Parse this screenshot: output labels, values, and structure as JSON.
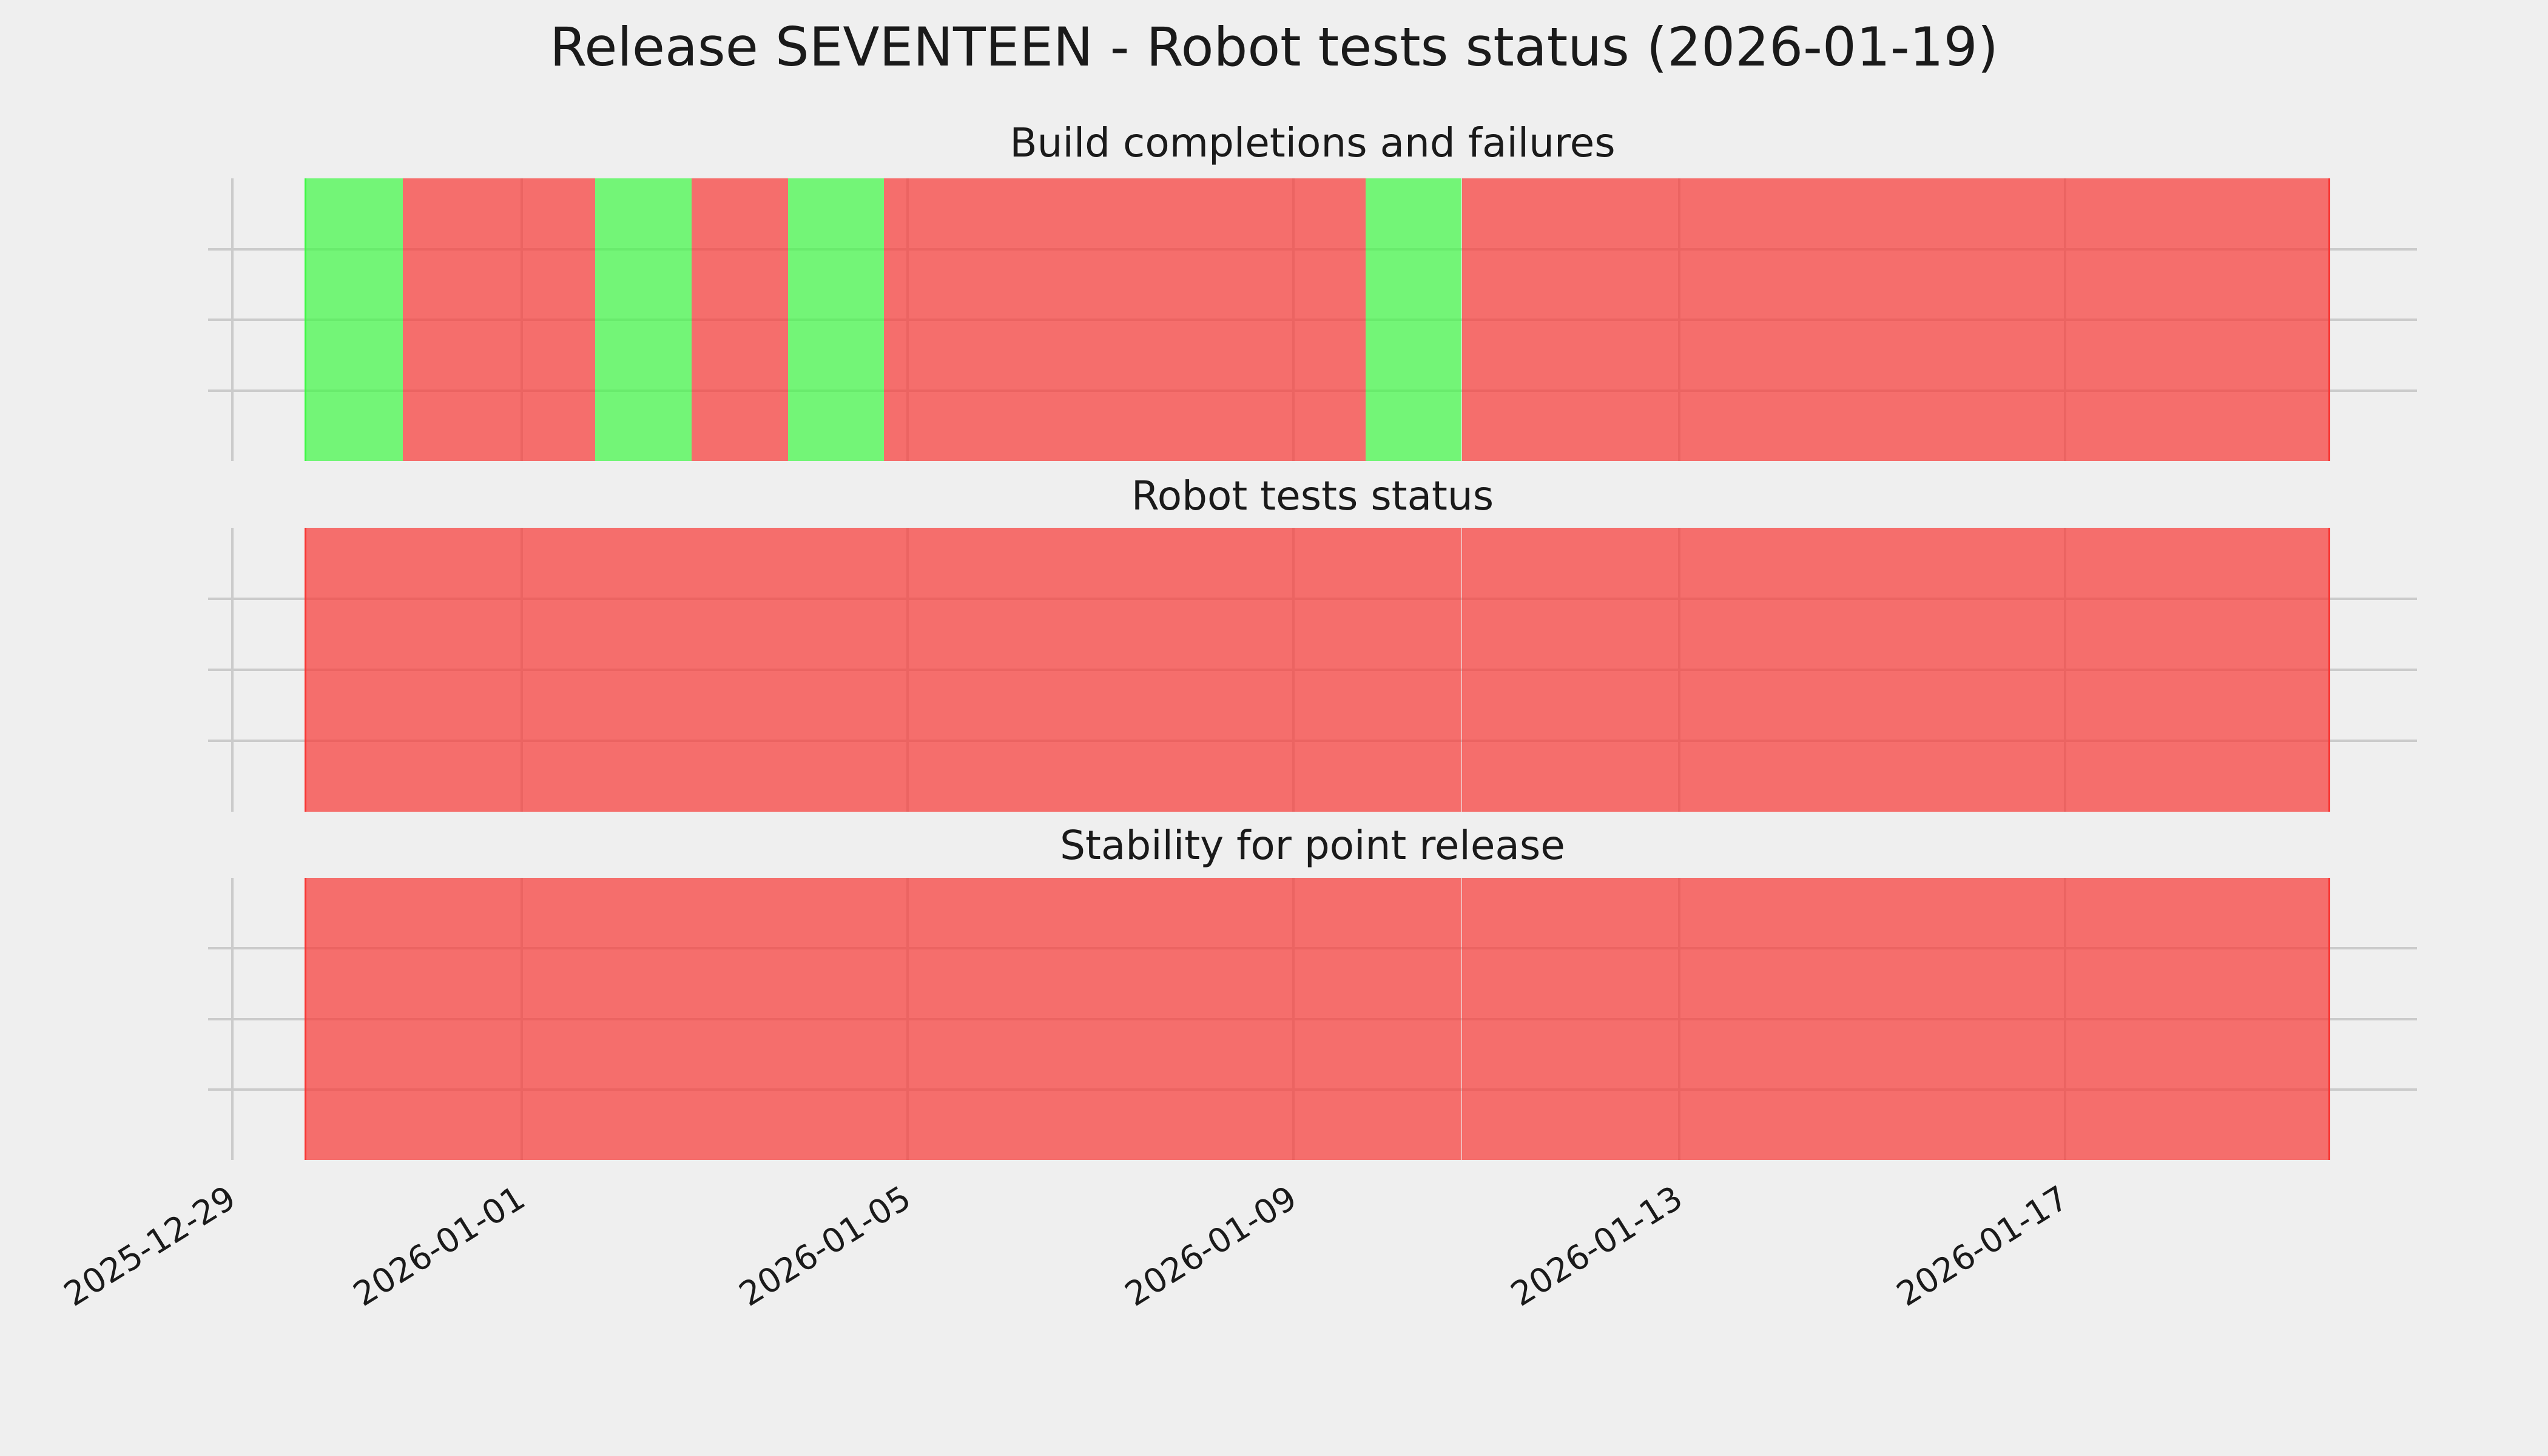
{
  "figure": {
    "title": "Release SEVENTEEN - Robot tests status (2026-01-19)"
  },
  "colors": {
    "background": "#efefef",
    "gridline": "#cbcbcb",
    "text": "#1a1a1a",
    "pass_fill": "rgba(62,248,69,0.70)",
    "fail_fill": "rgba(248,55,52,0.70)",
    "pass_edge": "#3ef845",
    "fail_edge": "#f83734"
  },
  "x_axis": {
    "tick_labels": [
      "2025-12-29",
      "2026-01-01",
      "2026-01-05",
      "2026-01-09",
      "2026-01-13",
      "2026-01-17"
    ],
    "tick_offsets_days": [
      -3,
      0,
      4,
      8,
      12,
      16
    ],
    "axis_min_days": -3.25,
    "axis_max_days": 19.65,
    "bands_start_days": -2.25,
    "band_width_days": 1
  },
  "chart_data": [
    {
      "type": "heatmap",
      "title": "Build completions and failures",
      "legend": {
        "pass": "green",
        "fail": "red"
      },
      "dates": [
        "2025-12-30",
        "2025-12-31",
        "2026-01-01",
        "2026-01-02",
        "2026-01-03",
        "2026-01-04",
        "2026-01-05",
        "2026-01-06",
        "2026-01-07",
        "2026-01-08",
        "2026-01-09",
        "2026-01-10",
        "2026-01-11",
        "2026-01-12",
        "2026-01-13",
        "2026-01-14",
        "2026-01-15",
        "2026-01-16",
        "2026-01-17",
        "2026-01-18",
        "2026-01-19"
      ],
      "statuses": [
        "pass",
        "fail",
        "fail",
        "pass",
        "fail",
        "pass",
        "fail",
        "fail",
        "fail",
        "fail",
        "fail",
        "pass",
        "fail",
        "fail",
        "fail",
        "fail",
        "fail",
        "fail",
        "fail",
        "fail",
        "fail"
      ]
    },
    {
      "type": "heatmap",
      "title": "Robot tests status",
      "legend": {
        "pass": "green",
        "fail": "red"
      },
      "dates": [
        "2025-12-30",
        "2025-12-31",
        "2026-01-01",
        "2026-01-02",
        "2026-01-03",
        "2026-01-04",
        "2026-01-05",
        "2026-01-06",
        "2026-01-07",
        "2026-01-08",
        "2026-01-09",
        "2026-01-10",
        "2026-01-11",
        "2026-01-12",
        "2026-01-13",
        "2026-01-14",
        "2026-01-15",
        "2026-01-16",
        "2026-01-17",
        "2026-01-18",
        "2026-01-19"
      ],
      "statuses": [
        "fail",
        "fail",
        "fail",
        "fail",
        "fail",
        "fail",
        "fail",
        "fail",
        "fail",
        "fail",
        "fail",
        "fail",
        "fail",
        "fail",
        "fail",
        "fail",
        "fail",
        "fail",
        "fail",
        "fail",
        "fail"
      ]
    },
    {
      "type": "heatmap",
      "title": "Stability for point release",
      "legend": {
        "pass": "green",
        "fail": "red"
      },
      "dates": [
        "2025-12-30",
        "2025-12-31",
        "2026-01-01",
        "2026-01-02",
        "2026-01-03",
        "2026-01-04",
        "2026-01-05",
        "2026-01-06",
        "2026-01-07",
        "2026-01-08",
        "2026-01-09",
        "2026-01-10",
        "2026-01-11",
        "2026-01-12",
        "2026-01-13",
        "2026-01-14",
        "2026-01-15",
        "2026-01-16",
        "2026-01-17",
        "2026-01-18",
        "2026-01-19"
      ],
      "statuses": [
        "fail",
        "fail",
        "fail",
        "fail",
        "fail",
        "fail",
        "fail",
        "fail",
        "fail",
        "fail",
        "fail",
        "fail",
        "fail",
        "fail",
        "fail",
        "fail",
        "fail",
        "fail",
        "fail",
        "fail",
        "fail"
      ]
    }
  ]
}
